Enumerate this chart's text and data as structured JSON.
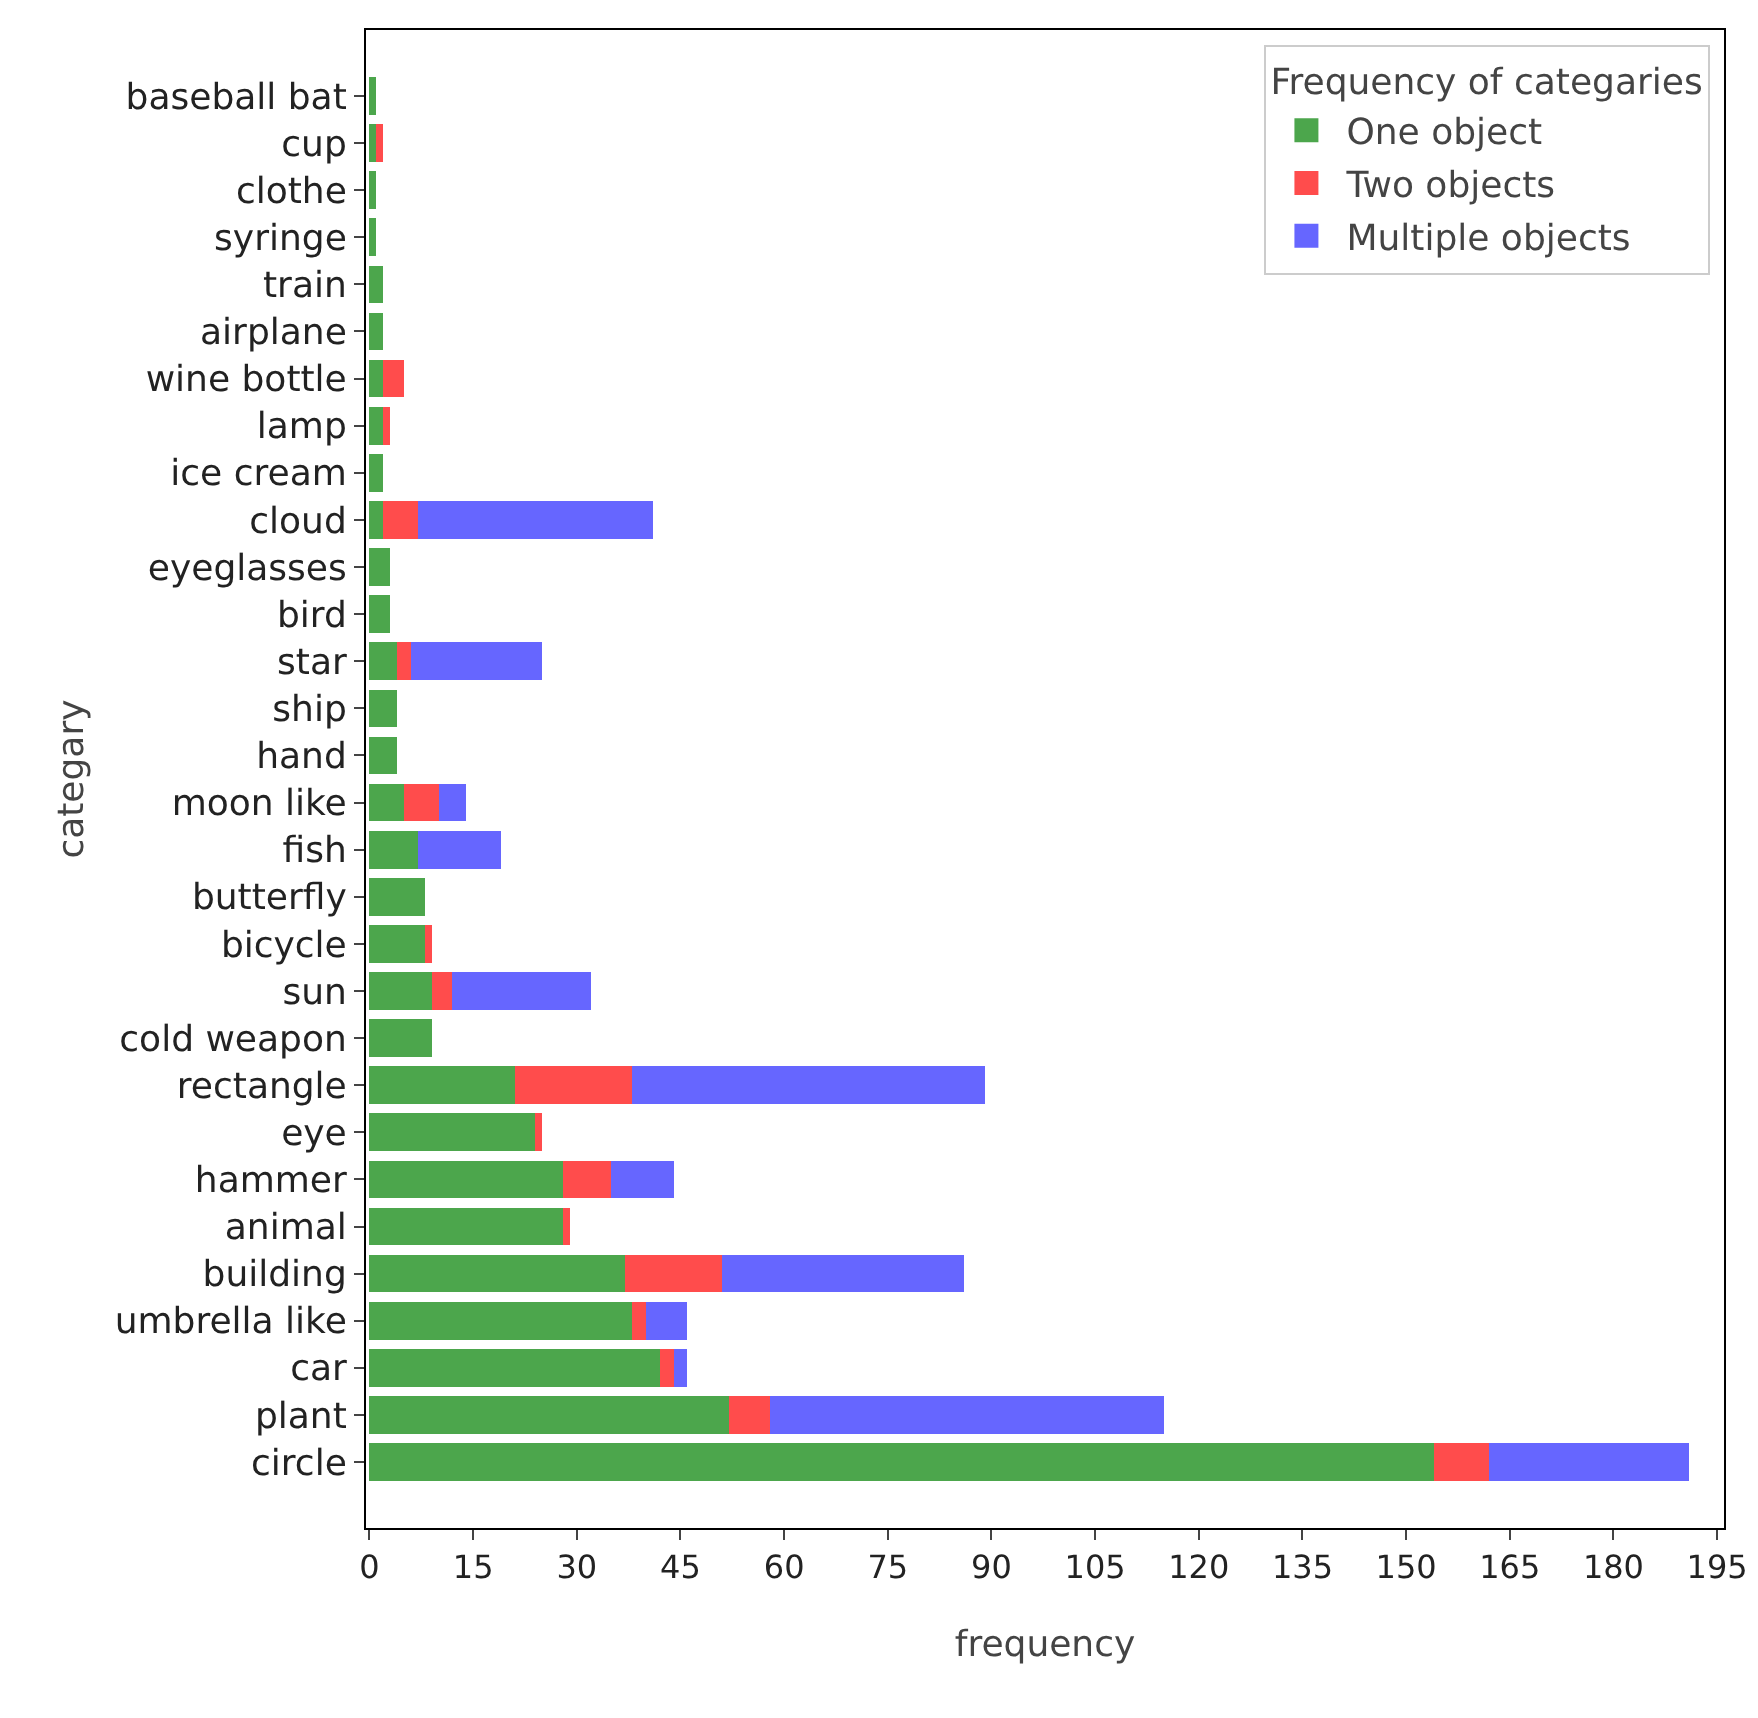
{
  "chart_data": {
    "type": "bar",
    "orientation": "horizontal",
    "stacked": true,
    "xlabel": "frequency",
    "ylabel": "categary",
    "legend_title": "Frequency of categaries",
    "legend": "top right",
    "grid": false,
    "categories": [
      "baseball bat",
      "cup",
      "clothe",
      "syringe",
      "train",
      "airplane",
      "wine bottle",
      "lamp",
      "ice cream",
      "cloud",
      "eyeglasses",
      "bird",
      "star",
      "ship",
      "hand",
      "moon like",
      "fish",
      "butterfly",
      "bicycle",
      "sun",
      "cold weapon",
      "rectangle",
      "eye",
      "hammer",
      "animal",
      "building",
      "umbrella like",
      "car",
      "plant",
      "circle"
    ],
    "series": [
      {
        "name": "One object",
        "color": "#4ca64c",
        "values": [
          1,
          1,
          1,
          1,
          2,
          2,
          2,
          2,
          2,
          2,
          3,
          3,
          4,
          4,
          4,
          5,
          7,
          8,
          8,
          9,
          9,
          21,
          24,
          28,
          28,
          37,
          38,
          42,
          52,
          154
        ]
      },
      {
        "name": "Two objects",
        "color": "#ff4c4c",
        "values": [
          0,
          1,
          0,
          0,
          0,
          0,
          3,
          1,
          0,
          5,
          0,
          0,
          2,
          0,
          0,
          5,
          0,
          0,
          1,
          3,
          0,
          17,
          1,
          7,
          1,
          14,
          2,
          2,
          6,
          8
        ]
      },
      {
        "name": "Multiple objects",
        "color": "#6666ff",
        "values": [
          0,
          0,
          0,
          0,
          0,
          0,
          0,
          0,
          0,
          34,
          0,
          0,
          19,
          0,
          0,
          4,
          12,
          0,
          0,
          20,
          0,
          51,
          0,
          9,
          0,
          35,
          6,
          2,
          57,
          29
        ]
      }
    ],
    "xlim": [
      -0.5,
      196
    ],
    "xticks": [
      0,
      15,
      30,
      45,
      60,
      75,
      90,
      105,
      120,
      135,
      150,
      165,
      180,
      195
    ]
  }
}
